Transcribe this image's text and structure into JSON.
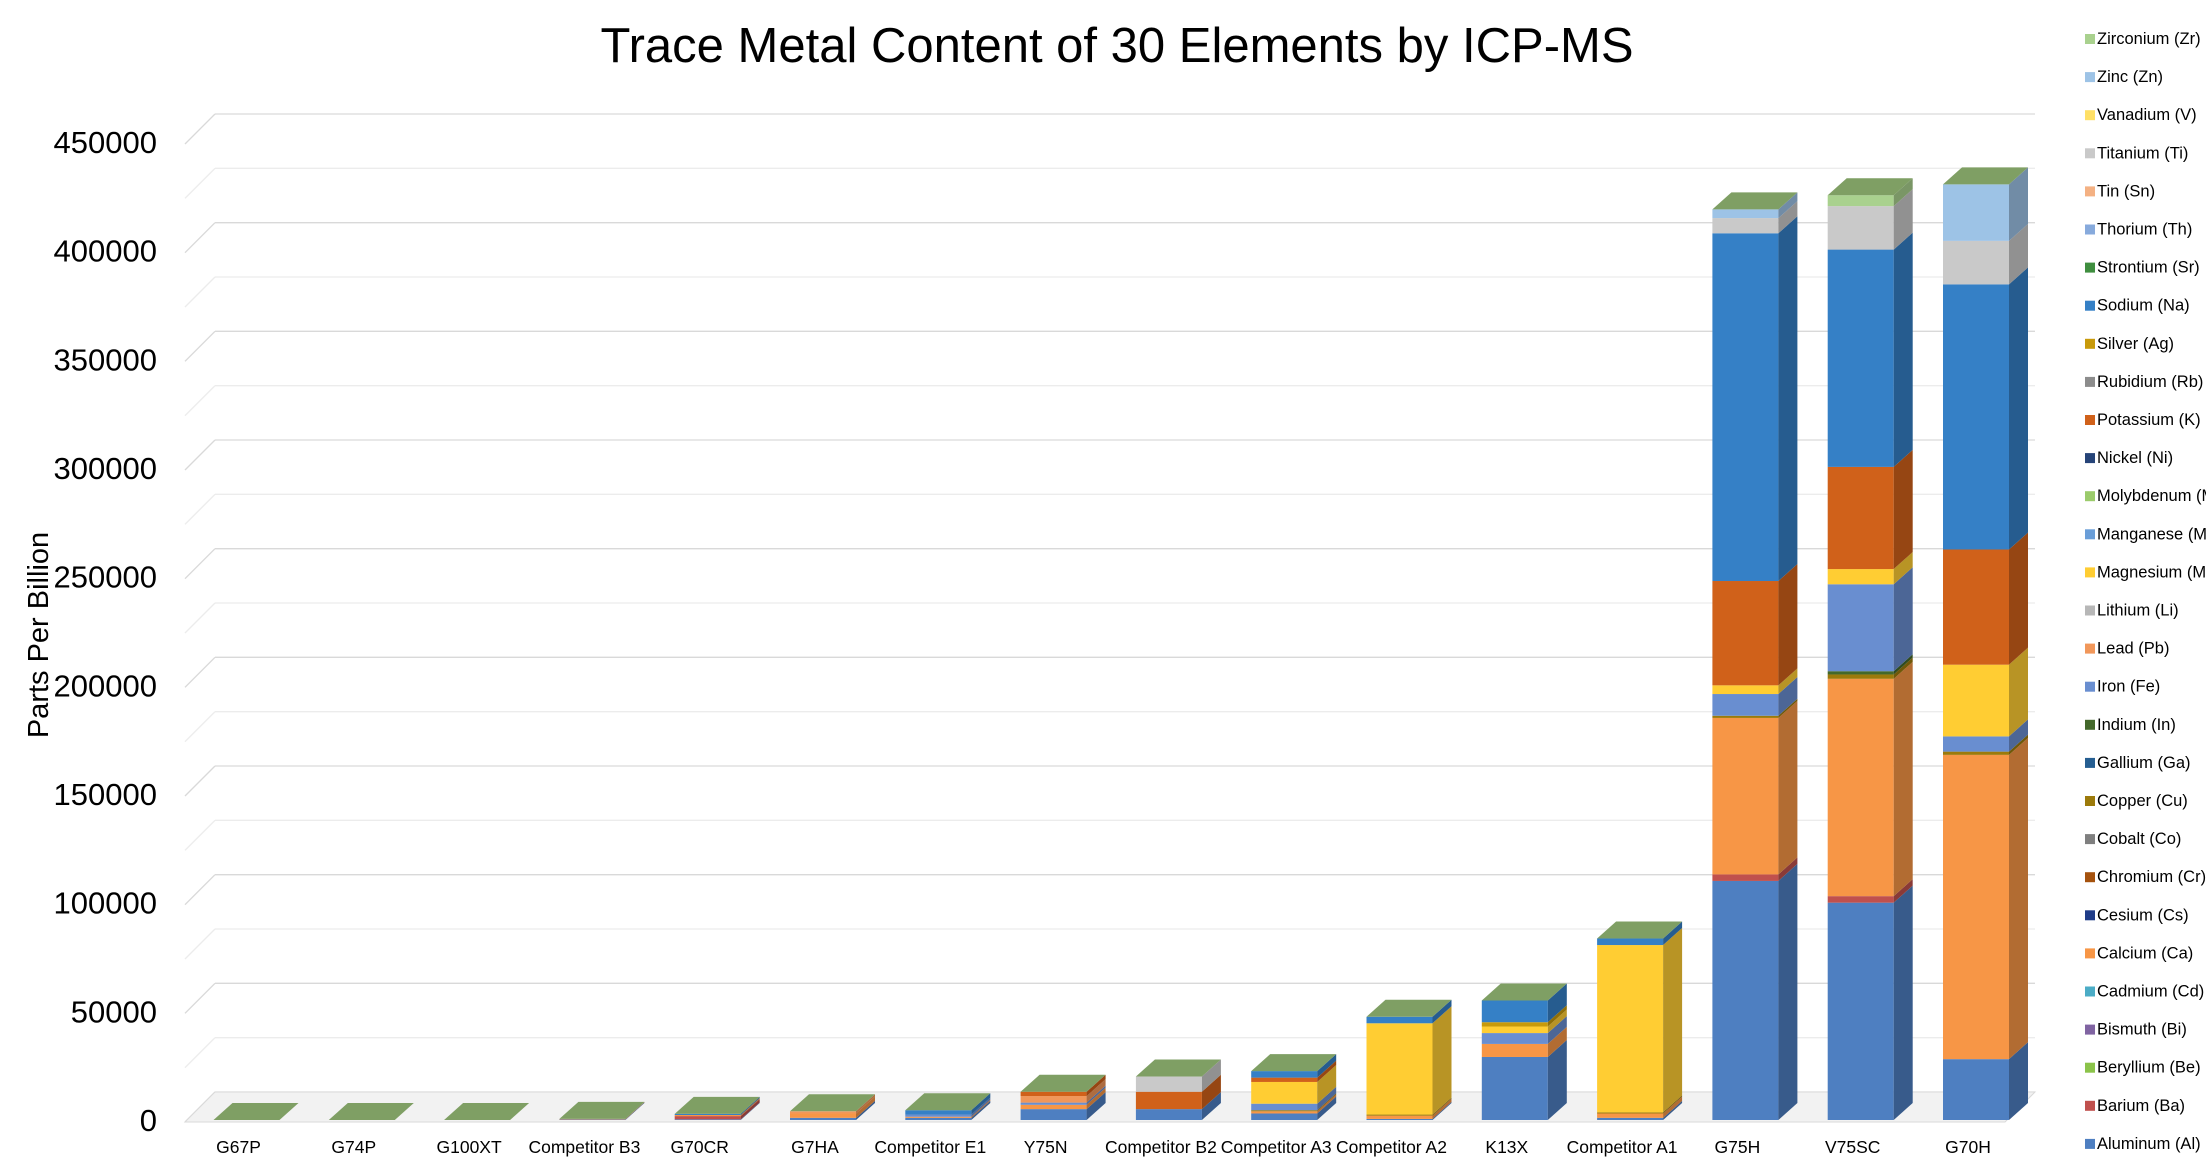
{
  "chart_data": {
    "type": "bar",
    "stacked": true,
    "three_d": true,
    "title": "Trace Metal Content of 30 Elements by ICP-MS",
    "ylabel": "Parts Per Billion",
    "xlabel": "",
    "ylim": [
      0,
      450000
    ],
    "yticks": [
      0,
      50000,
      100000,
      150000,
      200000,
      250000,
      300000,
      350000,
      400000,
      450000
    ],
    "grid": true,
    "legend_position": "right",
    "categories": [
      "G67P",
      "G74P",
      "G100XT",
      "Competitor B3",
      "G70CR",
      "G7HA",
      "Competitor E1",
      "Y75N",
      "Competitor B2",
      "Competitor A3",
      "Competitor A2",
      "K13X",
      "Competitor A1",
      "G75H",
      "V75SC",
      "G70H"
    ],
    "series": [
      {
        "name": "Aluminum (Al)",
        "color": "#4E7FC1",
        "values": [
          0,
          0,
          0,
          300,
          300,
          1000,
          1000,
          5000,
          5000,
          3000,
          500,
          29000,
          1000,
          110000,
          100000,
          28000
        ]
      },
      {
        "name": "Barium (Ba)",
        "color": "#C0504D",
        "values": [
          0,
          0,
          0,
          0,
          1500,
          0,
          0,
          0,
          0,
          0,
          0,
          0,
          0,
          3000,
          3000,
          0
        ]
      },
      {
        "name": "Beryllium (Be)",
        "color": "#8BC34A",
        "values": [
          0,
          0,
          0,
          0,
          0,
          0,
          0,
          0,
          0,
          0,
          0,
          0,
          0,
          0,
          0,
          0
        ]
      },
      {
        "name": "Bismuth (Bi)",
        "color": "#8064A2",
        "values": [
          0,
          0,
          0,
          0,
          0,
          0,
          0,
          0,
          0,
          0,
          0,
          0,
          0,
          0,
          0,
          0
        ]
      },
      {
        "name": "Cadmium (Cd)",
        "color": "#4BACC6",
        "values": [
          0,
          0,
          0,
          0,
          0,
          0,
          0,
          0,
          0,
          0,
          0,
          0,
          0,
          0,
          0,
          0
        ]
      },
      {
        "name": "Calcium (Ca)",
        "color": "#F79646",
        "values": [
          0,
          0,
          0,
          200,
          500,
          2000,
          500,
          2000,
          0,
          1000,
          1500,
          6000,
          2000,
          72000,
          100000,
          140000
        ]
      },
      {
        "name": "Cesium (Cs)",
        "color": "#1F3C88",
        "values": [
          0,
          0,
          0,
          0,
          0,
          0,
          0,
          0,
          0,
          0,
          0,
          0,
          0,
          0,
          0,
          0
        ]
      },
      {
        "name": "Chromium (Cr)",
        "color": "#A5520E",
        "values": [
          0,
          0,
          0,
          0,
          0,
          0,
          0,
          0,
          0,
          0,
          0,
          0,
          0,
          0,
          0,
          0
        ]
      },
      {
        "name": "Cobalt (Co)",
        "color": "#7F7F7F",
        "values": [
          0,
          0,
          0,
          0,
          0,
          0,
          0,
          0,
          0,
          0,
          0,
          0,
          0,
          0,
          0,
          0
        ]
      },
      {
        "name": "Copper (Cu)",
        "color": "#9C7A0B",
        "values": [
          0,
          0,
          0,
          0,
          0,
          0,
          0,
          0,
          0,
          500,
          500,
          0,
          500,
          1000,
          2000,
          1500
        ]
      },
      {
        "name": "Gallium (Ga)",
        "color": "#255E91",
        "values": [
          0,
          0,
          0,
          0,
          0,
          0,
          0,
          0,
          0,
          0,
          0,
          0,
          0,
          0,
          0,
          0
        ]
      },
      {
        "name": "Indium (In)",
        "color": "#43682B",
        "values": [
          0,
          0,
          0,
          0,
          0,
          0,
          0,
          0,
          0,
          0,
          0,
          0,
          0,
          0,
          1500,
          0
        ]
      },
      {
        "name": "Iron (Fe)",
        "color": "#698ED0",
        "values": [
          0,
          0,
          0,
          0,
          0,
          0,
          1000,
          1000,
          0,
          3000,
          0,
          5000,
          0,
          10000,
          40000,
          7000
        ]
      },
      {
        "name": "Lead (Pb)",
        "color": "#F1975A",
        "values": [
          0,
          0,
          0,
          0,
          0,
          1000,
          0,
          3000,
          0,
          0,
          0,
          0,
          0,
          0,
          0,
          0
        ]
      },
      {
        "name": "Lithium (Li)",
        "color": "#B7B7B7",
        "values": [
          0,
          0,
          0,
          0,
          0,
          0,
          0,
          0,
          0,
          0,
          0,
          0,
          0,
          0,
          0,
          0
        ]
      },
      {
        "name": "Magnesium (Mg)",
        "color": "#FFCD33",
        "values": [
          0,
          0,
          0,
          0,
          0,
          0,
          0,
          0,
          0,
          10000,
          42000,
          3000,
          77000,
          4000,
          7000,
          33000
        ]
      },
      {
        "name": "Manganese (Mn)",
        "color": "#6A9ED8",
        "values": [
          0,
          0,
          0,
          0,
          0,
          0,
          0,
          0,
          0,
          0,
          0,
          0,
          0,
          0,
          0,
          0
        ]
      },
      {
        "name": "Molybdenum (Mo)",
        "color": "#9BCB6B",
        "values": [
          0,
          0,
          0,
          0,
          0,
          0,
          0,
          0,
          0,
          0,
          0,
          0,
          0,
          0,
          0,
          0
        ]
      },
      {
        "name": "Nickel (Ni)",
        "color": "#264478",
        "values": [
          0,
          0,
          0,
          0,
          0,
          0,
          0,
          0,
          0,
          0,
          0,
          0,
          0,
          0,
          0,
          0
        ]
      },
      {
        "name": "Potassium (K)",
        "color": "#D0611A",
        "values": [
          0,
          0,
          0,
          0,
          0,
          0,
          0,
          2000,
          8000,
          2000,
          0,
          0,
          0,
          48000,
          47000,
          53000
        ]
      },
      {
        "name": "Rubidium (Rb)",
        "color": "#8C8C8C",
        "values": [
          0,
          0,
          0,
          0,
          0,
          0,
          0,
          0,
          0,
          0,
          0,
          0,
          0,
          0,
          0,
          0
        ]
      },
      {
        "name": "Silver (Ag)",
        "color": "#C89A0A",
        "values": [
          0,
          0,
          0,
          0,
          0,
          0,
          0,
          0,
          0,
          0,
          0,
          2000,
          0,
          0,
          0,
          0
        ]
      },
      {
        "name": "Sodium (Na)",
        "color": "#3580C6",
        "values": [
          0,
          0,
          0,
          0,
          500,
          0,
          2000,
          0,
          0,
          3000,
          3000,
          10000,
          3000,
          160000,
          100000,
          122000
        ]
      },
      {
        "name": "Strontium (Sr)",
        "color": "#3F8E3F",
        "values": [
          0,
          0,
          0,
          0,
          0,
          0,
          0,
          0,
          0,
          0,
          0,
          0,
          0,
          0,
          0,
          0
        ]
      },
      {
        "name": "Thorium (Th)",
        "color": "#87AADC",
        "values": [
          0,
          0,
          0,
          0,
          0,
          0,
          0,
          0,
          0,
          0,
          0,
          0,
          0,
          0,
          0,
          0
        ]
      },
      {
        "name": "Tin (Sn)",
        "color": "#F4B183",
        "values": [
          0,
          0,
          0,
          0,
          0,
          0,
          0,
          0,
          0,
          0,
          0,
          0,
          0,
          0,
          0,
          0
        ]
      },
      {
        "name": "Titanium (Ti)",
        "color": "#C9C9C9",
        "values": [
          0,
          0,
          0,
          0,
          0,
          0,
          0,
          0,
          7000,
          0,
          0,
          0,
          0,
          7000,
          20000,
          20000
        ]
      },
      {
        "name": "Vanadium (V)",
        "color": "#FFE066",
        "values": [
          0,
          0,
          0,
          0,
          0,
          0,
          0,
          0,
          0,
          0,
          0,
          0,
          0,
          0,
          0,
          0
        ]
      },
      {
        "name": "Zinc (Zn)",
        "color": "#9DC3E6",
        "values": [
          0,
          0,
          0,
          0,
          0,
          0,
          0,
          0,
          0,
          0,
          0,
          0,
          0,
          4000,
          0,
          26000
        ]
      },
      {
        "name": "Zirconium (Zr)",
        "color": "#A9D18E",
        "values": [
          0,
          0,
          0,
          0,
          0,
          0,
          0,
          0,
          0,
          0,
          0,
          0,
          0,
          0,
          5000,
          0
        ]
      }
    ]
  }
}
